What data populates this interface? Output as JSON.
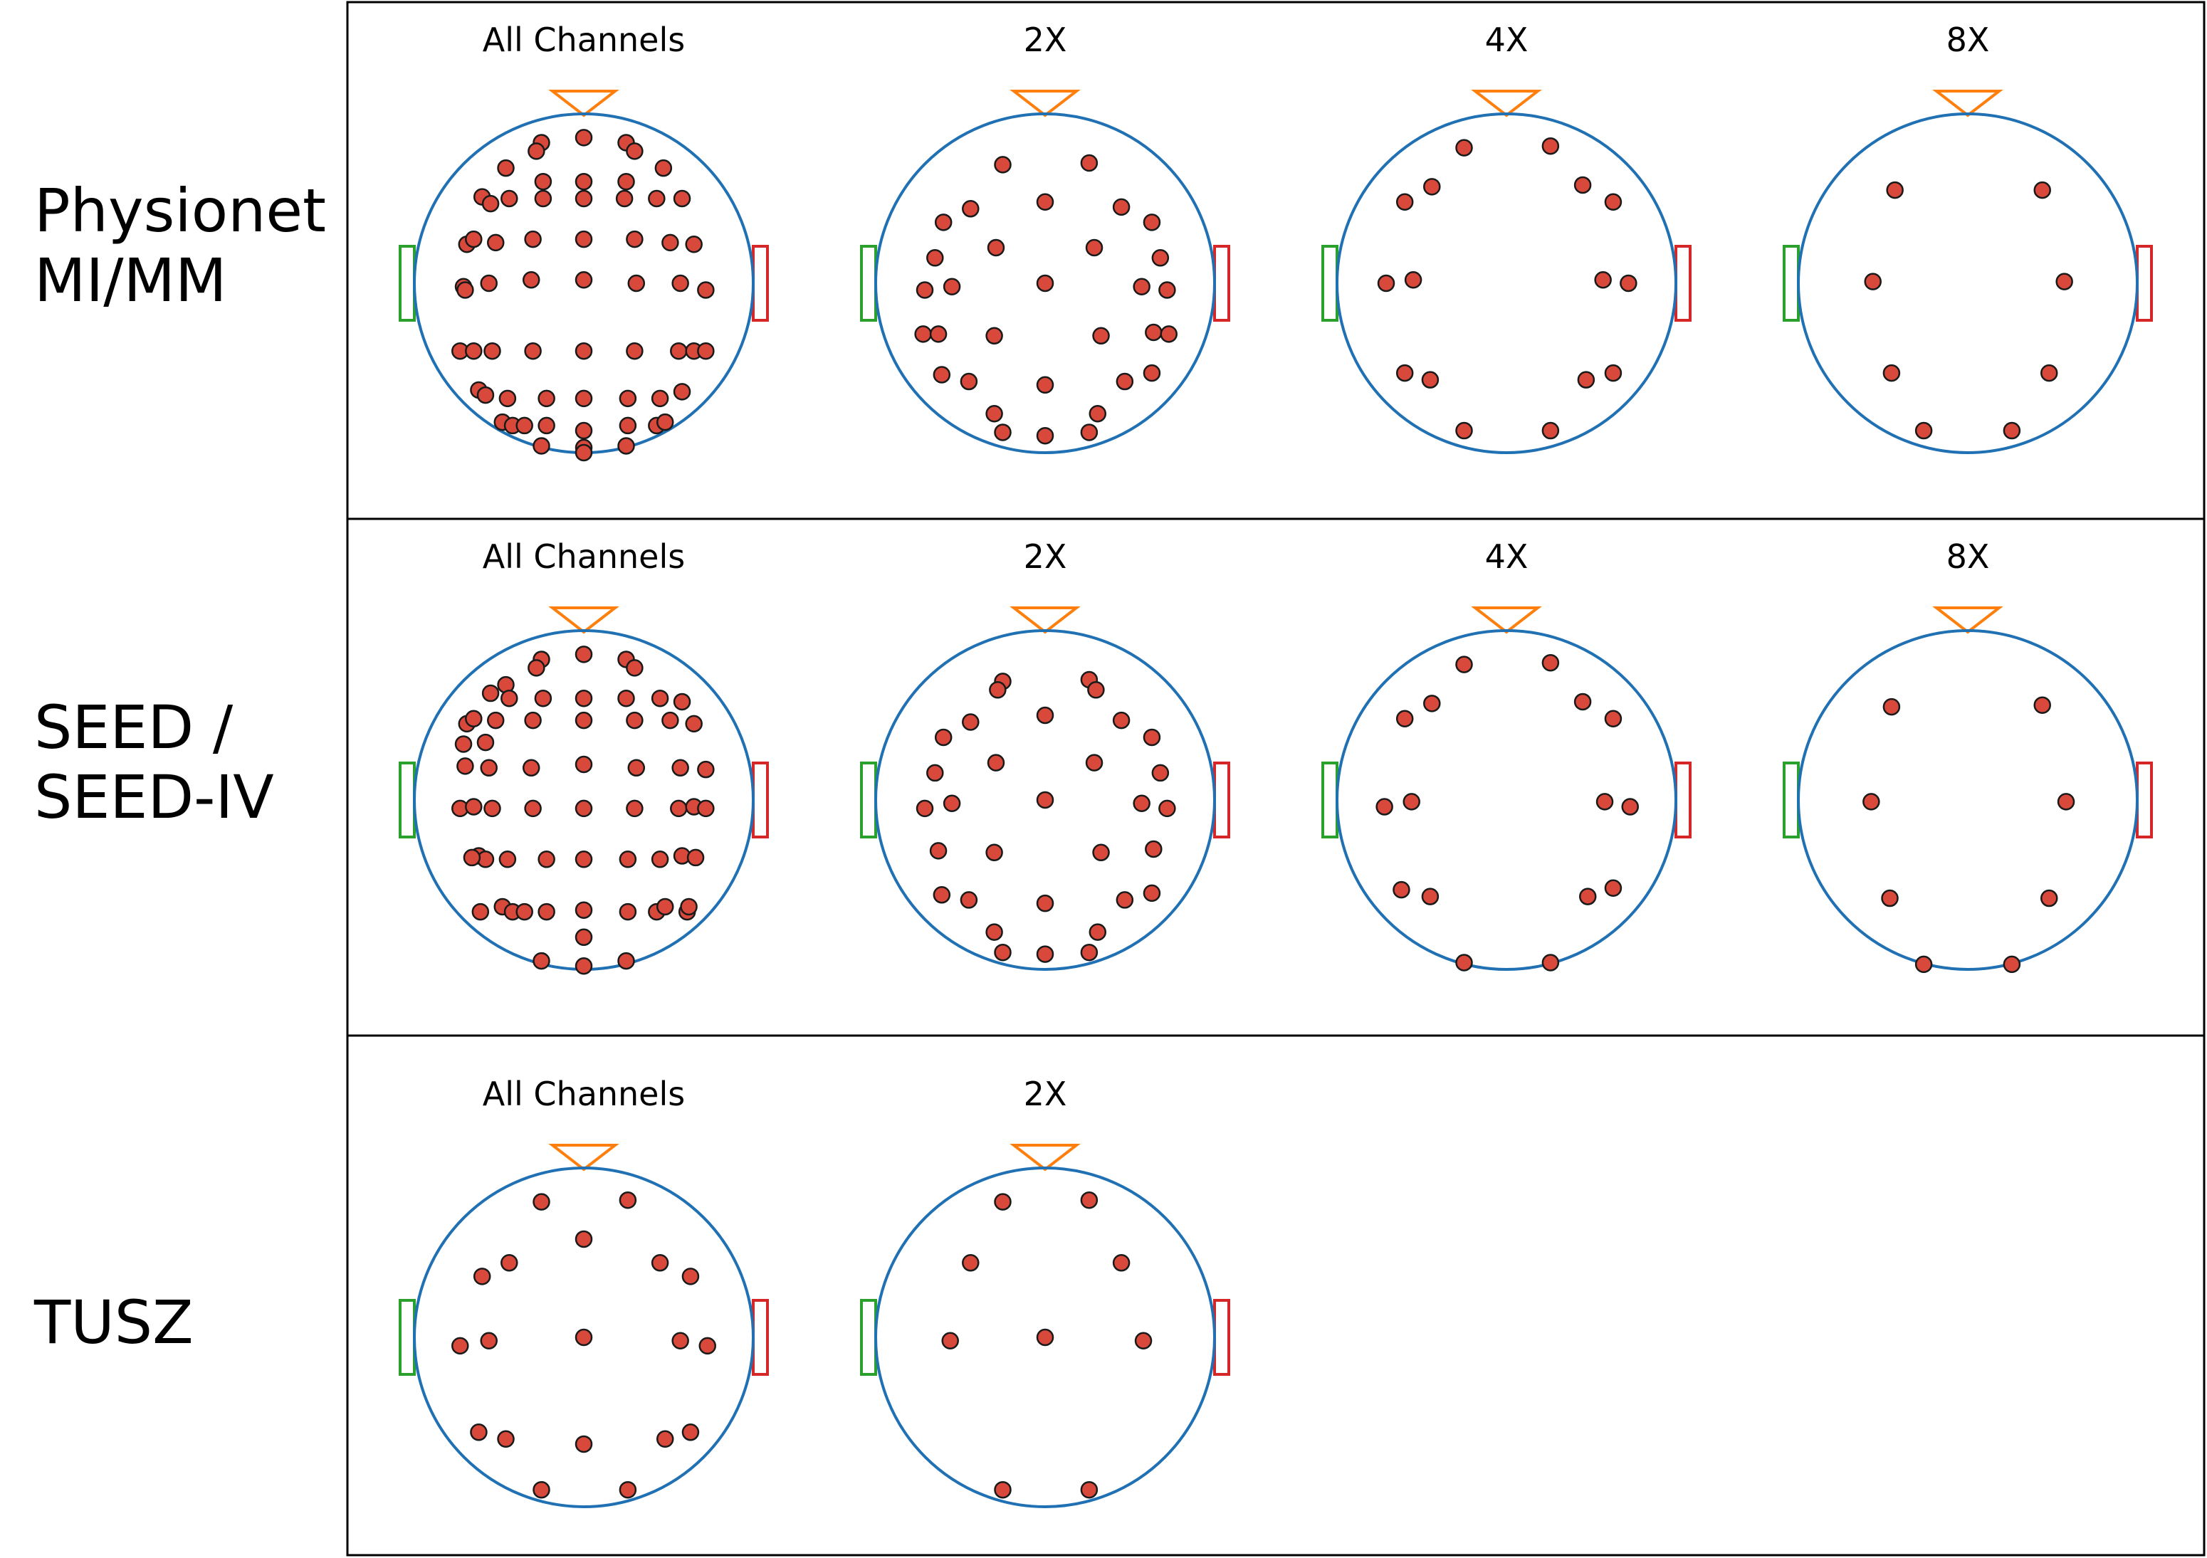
{
  "rows": [
    {
      "label_lines": [
        "Physionet",
        "MI/MM"
      ],
      "panels": [
        {
          "title": "All Channels",
          "electrodes": [
            [
              -0.25,
              0.83
            ],
            [
              0,
              0.86
            ],
            [
              0.25,
              0.83
            ],
            [
              -0.28,
              0.78
            ],
            [
              0.3,
              0.78
            ],
            [
              -0.46,
              0.68
            ],
            [
              -0.24,
              0.6
            ],
            [
              0,
              0.6
            ],
            [
              0.25,
              0.6
            ],
            [
              0.47,
              0.68
            ],
            [
              -0.6,
              0.51
            ],
            [
              -0.55,
              0.47
            ],
            [
              -0.44,
              0.5
            ],
            [
              -0.24,
              0.5
            ],
            [
              0,
              0.5
            ],
            [
              0.24,
              0.5
            ],
            [
              0.43,
              0.5
            ],
            [
              0.58,
              0.5
            ],
            [
              -0.69,
              0.23
            ],
            [
              -0.65,
              0.26
            ],
            [
              -0.52,
              0.24
            ],
            [
              -0.3,
              0.26
            ],
            [
              0,
              0.26
            ],
            [
              0.3,
              0.26
            ],
            [
              0.51,
              0.24
            ],
            [
              0.65,
              0.23
            ],
            [
              -0.71,
              -0.02
            ],
            [
              -0.56,
              0
            ],
            [
              -0.31,
              0.02
            ],
            [
              0,
              0.02
            ],
            [
              0.31,
              0
            ],
            [
              0.57,
              0
            ],
            [
              0.72,
              -0.04
            ],
            [
              -0.7,
              -0.04
            ],
            [
              -0.73,
              -0.4
            ],
            [
              -0.65,
              -0.4
            ],
            [
              -0.54,
              -0.4
            ],
            [
              -0.3,
              -0.4
            ],
            [
              0,
              -0.4
            ],
            [
              0.3,
              -0.4
            ],
            [
              0.56,
              -0.4
            ],
            [
              0.65,
              -0.4
            ],
            [
              0.72,
              -0.4
            ],
            [
              -0.62,
              -0.63
            ],
            [
              -0.58,
              -0.66
            ],
            [
              -0.45,
              -0.68
            ],
            [
              -0.22,
              -0.68
            ],
            [
              0,
              -0.68
            ],
            [
              0.26,
              -0.68
            ],
            [
              0.45,
              -0.68
            ],
            [
              0.58,
              -0.64
            ],
            [
              -0.48,
              -0.82
            ],
            [
              -0.42,
              -0.84
            ],
            [
              -0.35,
              -0.84
            ],
            [
              -0.22,
              -0.84
            ],
            [
              0,
              -0.87
            ],
            [
              0.26,
              -0.84
            ],
            [
              0.43,
              -0.84
            ],
            [
              0.48,
              -0.82
            ],
            [
              -0.25,
              -0.96
            ],
            [
              0,
              -0.97
            ],
            [
              0.25,
              -0.96
            ],
            [
              0,
              -1.0
            ]
          ]
        },
        {
          "title": "2X",
          "electrodes": [
            [
              -0.25,
              0.7
            ],
            [
              0.26,
              0.71
            ],
            [
              0,
              0.48
            ],
            [
              -0.44,
              0.44
            ],
            [
              0.45,
              0.45
            ],
            [
              -0.6,
              0.36
            ],
            [
              0.63,
              0.36
            ],
            [
              -0.29,
              0.21
            ],
            [
              0.29,
              0.21
            ],
            [
              -0.65,
              0.15
            ],
            [
              0.68,
              0.15
            ],
            [
              -0.71,
              -0.04
            ],
            [
              -0.55,
              -0.02
            ],
            [
              0,
              0
            ],
            [
              0.57,
              -0.02
            ],
            [
              0.72,
              -0.04
            ],
            [
              -0.72,
              -0.3
            ],
            [
              -0.63,
              -0.3
            ],
            [
              -0.3,
              -0.31
            ],
            [
              0.33,
              -0.31
            ],
            [
              0.64,
              -0.29
            ],
            [
              0.73,
              -0.3
            ],
            [
              -0.61,
              -0.54
            ],
            [
              -0.45,
              -0.58
            ],
            [
              0,
              -0.6
            ],
            [
              0.47,
              -0.58
            ],
            [
              0.63,
              -0.53
            ],
            [
              -0.3,
              -0.77
            ],
            [
              0.31,
              -0.77
            ],
            [
              -0.25,
              -0.88
            ],
            [
              0,
              -0.9
            ],
            [
              0.26,
              -0.88
            ]
          ]
        },
        {
          "title": "4X",
          "electrodes": [
            [
              -0.25,
              0.8
            ],
            [
              0.26,
              0.81
            ],
            [
              -0.44,
              0.57
            ],
            [
              0.45,
              0.58
            ],
            [
              -0.6,
              0.48
            ],
            [
              0.63,
              0.48
            ],
            [
              -0.71,
              0
            ],
            [
              -0.55,
              0.02
            ],
            [
              0.57,
              0.02
            ],
            [
              0.72,
              0
            ],
            [
              -0.6,
              -0.53
            ],
            [
              -0.45,
              -0.57
            ],
            [
              0.47,
              -0.57
            ],
            [
              0.63,
              -0.53
            ],
            [
              -0.25,
              -0.87
            ],
            [
              0.26,
              -0.87
            ]
          ]
        },
        {
          "title": "8X",
          "electrodes": [
            [
              -0.43,
              0.55
            ],
            [
              0.44,
              0.55
            ],
            [
              -0.56,
              0.01
            ],
            [
              0.57,
              0.01
            ],
            [
              -0.45,
              -0.53
            ],
            [
              0.48,
              -0.53
            ],
            [
              -0.26,
              -0.87
            ],
            [
              0.26,
              -0.87
            ]
          ]
        }
      ]
    },
    {
      "label_lines": [
        "SEED /",
        "SEED-IV"
      ],
      "panels": [
        {
          "title": "All Channels",
          "electrodes": [
            [
              0,
              0.86
            ],
            [
              -0.25,
              0.83
            ],
            [
              0.25,
              0.83
            ],
            [
              -0.28,
              0.78
            ],
            [
              0.3,
              0.78
            ],
            [
              -0.46,
              0.68
            ],
            [
              -0.55,
              0.63
            ],
            [
              -0.44,
              0.6
            ],
            [
              -0.24,
              0.6
            ],
            [
              0,
              0.6
            ],
            [
              0.25,
              0.6
            ],
            [
              0.45,
              0.6
            ],
            [
              0.58,
              0.58
            ],
            [
              -0.69,
              0.45
            ],
            [
              -0.65,
              0.48
            ],
            [
              -0.52,
              0.47
            ],
            [
              -0.3,
              0.47
            ],
            [
              0,
              0.47
            ],
            [
              0.3,
              0.47
            ],
            [
              0.51,
              0.47
            ],
            [
              0.65,
              0.45
            ],
            [
              -0.58,
              0.34
            ],
            [
              -0.71,
              0.33
            ],
            [
              -0.56,
              0.19
            ],
            [
              -0.31,
              0.19
            ],
            [
              0,
              0.21
            ],
            [
              0.31,
              0.19
            ],
            [
              0.57,
              0.19
            ],
            [
              0.72,
              0.18
            ],
            [
              -0.7,
              0.2
            ],
            [
              -0.73,
              -0.05
            ],
            [
              -0.65,
              -0.04
            ],
            [
              -0.54,
              -0.05
            ],
            [
              -0.3,
              -0.05
            ],
            [
              0,
              -0.05
            ],
            [
              0.3,
              -0.05
            ],
            [
              0.56,
              -0.05
            ],
            [
              0.65,
              -0.04
            ],
            [
              0.72,
              -0.05
            ],
            [
              -0.62,
              -0.33
            ],
            [
              -0.58,
              -0.35
            ],
            [
              -0.45,
              -0.35
            ],
            [
              -0.22,
              -0.35
            ],
            [
              0,
              -0.35
            ],
            [
              0.26,
              -0.35
            ],
            [
              0.45,
              -0.35
            ],
            [
              0.58,
              -0.33
            ],
            [
              -0.48,
              -0.63
            ],
            [
              -0.42,
              -0.66
            ],
            [
              -0.35,
              -0.66
            ],
            [
              -0.22,
              -0.66
            ],
            [
              0,
              -0.65
            ],
            [
              0.26,
              -0.66
            ],
            [
              0.43,
              -0.66
            ],
            [
              0.48,
              -0.63
            ],
            [
              -0.25,
              -0.95
            ],
            [
              0,
              -0.98
            ],
            [
              0.25,
              -0.95
            ],
            [
              0,
              -0.81
            ],
            [
              -0.61,
              -0.66
            ],
            [
              0.61,
              -0.66
            ],
            [
              0.62,
              -0.63
            ],
            [
              -0.66,
              -0.34
            ],
            [
              0.66,
              -0.34
            ]
          ]
        },
        {
          "title": "2X",
          "electrodes": [
            [
              -0.25,
              0.7
            ],
            [
              0.26,
              0.71
            ],
            [
              -0.28,
              0.65
            ],
            [
              0.3,
              0.65
            ],
            [
              0,
              0.5
            ],
            [
              -0.44,
              0.46
            ],
            [
              0.45,
              0.47
            ],
            [
              -0.6,
              0.37
            ],
            [
              0.63,
              0.37
            ],
            [
              -0.29,
              0.22
            ],
            [
              0.29,
              0.22
            ],
            [
              -0.65,
              0.16
            ],
            [
              0.68,
              0.16
            ],
            [
              -0.71,
              -0.05
            ],
            [
              -0.55,
              -0.02
            ],
            [
              0,
              0
            ],
            [
              0.57,
              -0.02
            ],
            [
              0.72,
              -0.05
            ],
            [
              -0.63,
              -0.3
            ],
            [
              -0.3,
              -0.31
            ],
            [
              0.33,
              -0.31
            ],
            [
              0.64,
              -0.29
            ],
            [
              -0.61,
              -0.56
            ],
            [
              -0.45,
              -0.59
            ],
            [
              0,
              -0.61
            ],
            [
              0.47,
              -0.59
            ],
            [
              0.63,
              -0.55
            ],
            [
              -0.3,
              -0.78
            ],
            [
              0.31,
              -0.78
            ],
            [
              -0.25,
              -0.9
            ],
            [
              0,
              -0.91
            ],
            [
              0.26,
              -0.9
            ]
          ]
        },
        {
          "title": "4X",
          "electrodes": [
            [
              -0.25,
              0.8
            ],
            [
              0.26,
              0.81
            ],
            [
              -0.44,
              0.57
            ],
            [
              0.45,
              0.58
            ],
            [
              -0.6,
              0.48
            ],
            [
              0.63,
              0.48
            ],
            [
              -0.72,
              -0.04
            ],
            [
              -0.56,
              -0.01
            ],
            [
              0.58,
              -0.01
            ],
            [
              0.73,
              -0.04
            ],
            [
              -0.62,
              -0.53
            ],
            [
              -0.45,
              -0.57
            ],
            [
              0.48,
              -0.57
            ],
            [
              0.63,
              -0.52
            ],
            [
              -0.25,
              -0.96
            ],
            [
              0.26,
              -0.96
            ]
          ]
        },
        {
          "title": "8X",
          "electrodes": [
            [
              -0.45,
              0.55
            ],
            [
              0.44,
              0.56
            ],
            [
              -0.57,
              -0.01
            ],
            [
              0.58,
              -0.01
            ],
            [
              -0.46,
              -0.58
            ],
            [
              0.48,
              -0.58
            ],
            [
              -0.26,
              -0.97
            ],
            [
              0.26,
              -0.97
            ]
          ]
        }
      ]
    },
    {
      "label_lines": [
        "TUSZ"
      ],
      "panels": [
        {
          "title": "All Channels",
          "electrodes": [
            [
              -0.25,
              0.8
            ],
            [
              0.26,
              0.81
            ],
            [
              0,
              0.58
            ],
            [
              -0.44,
              0.44
            ],
            [
              0.45,
              0.44
            ],
            [
              -0.6,
              0.36
            ],
            [
              0.63,
              0.36
            ],
            [
              -0.73,
              -0.05
            ],
            [
              -0.56,
              -0.02
            ],
            [
              0,
              0
            ],
            [
              0.57,
              -0.02
            ],
            [
              0.73,
              -0.05
            ],
            [
              -0.62,
              -0.56
            ],
            [
              -0.46,
              -0.6
            ],
            [
              0,
              -0.63
            ],
            [
              0.48,
              -0.6
            ],
            [
              0.63,
              -0.56
            ],
            [
              -0.25,
              -0.9
            ],
            [
              0.26,
              -0.9
            ]
          ]
        },
        {
          "title": "2X",
          "electrodes": [
            [
              -0.25,
              0.8
            ],
            [
              0.26,
              0.81
            ],
            [
              -0.44,
              0.44
            ],
            [
              0.45,
              0.44
            ],
            [
              -0.56,
              -0.02
            ],
            [
              0,
              0
            ],
            [
              0.58,
              -0.02
            ],
            [
              -0.25,
              -0.9
            ],
            [
              0.26,
              -0.9
            ]
          ]
        }
      ]
    }
  ],
  "colors": {
    "head": "#2070b4",
    "nose": "#ff7f0e",
    "left_ear": "#2ca02c",
    "right_ear": "#d62728",
    "electrode_fill": "#d9493b",
    "electrode_stroke": "#1a1a1a",
    "frame": "#000000"
  }
}
